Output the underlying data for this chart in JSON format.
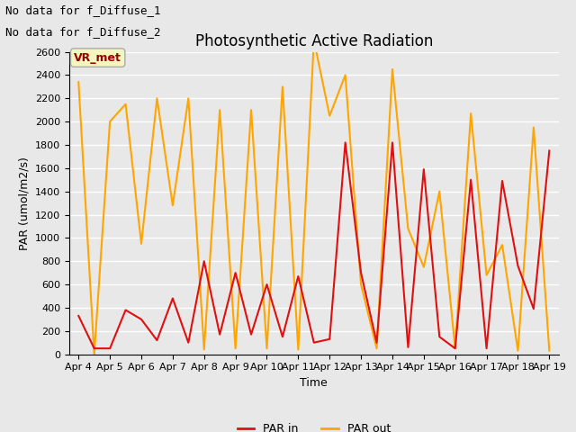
{
  "title": "Photosynthetic Active Radiation",
  "xlabel": "Time",
  "ylabel": "PAR (umol/m2/s)",
  "annotation_lines": [
    "No data for f_Diffuse_1",
    "No data for f_Diffuse_2"
  ],
  "legend_box_label": "VR_met",
  "x_labels": [
    "Apr 4",
    "Apr 5",
    "Apr 6",
    "Apr 7",
    "Apr 8",
    "Apr 9",
    "Apr 10",
    "Apr 11",
    "Apr 12",
    "Apr 13",
    "Apr 14",
    "Apr 15",
    "Apr 16",
    "Apr 17",
    "Apr 18",
    "Apr 19"
  ],
  "x_ticks": [
    0,
    1,
    2,
    3,
    4,
    5,
    6,
    7,
    8,
    9,
    10,
    11,
    12,
    13,
    14,
    15
  ],
  "ylim": [
    0,
    2600
  ],
  "yticks": [
    0,
    200,
    400,
    600,
    800,
    1000,
    1200,
    1400,
    1600,
    1800,
    2000,
    2200,
    2400,
    2600
  ],
  "par_in": {
    "x": [
      0,
      0.5,
      1,
      1.5,
      2,
      2.5,
      3,
      3.5,
      4,
      4.5,
      5,
      5.5,
      6,
      6.5,
      7,
      7.5,
      8,
      8.5,
      9,
      9.5,
      10,
      10.5,
      11,
      11.5,
      12,
      12.5,
      13,
      13.5,
      14,
      14.5,
      15
    ],
    "y": [
      330,
      50,
      50,
      380,
      300,
      120,
      480,
      100,
      800,
      170,
      700,
      170,
      600,
      150,
      670,
      100,
      130,
      1820,
      700,
      100,
      1820,
      60,
      1590,
      150,
      50,
      1500,
      50,
      1490,
      760,
      390,
      1750
    ],
    "color": "#e01010",
    "linewidth": 1.5,
    "label": "PAR in"
  },
  "par_out": {
    "x": [
      0,
      0.5,
      1,
      1.5,
      2,
      2.5,
      3,
      3.5,
      4,
      4.5,
      5,
      5.5,
      6,
      6.5,
      7,
      7.5,
      8,
      8.5,
      9,
      9.5,
      10,
      10.5,
      11,
      11.5,
      12,
      12.5,
      13,
      13.5,
      14,
      14.5,
      15
    ],
    "y": [
      2340,
      0,
      2000,
      2150,
      950,
      2200,
      1280,
      2200,
      40,
      2100,
      50,
      2100,
      50,
      2300,
      40,
      2700,
      2050,
      2400,
      600,
      50,
      2450,
      1080,
      750,
      1400,
      50,
      2070,
      680,
      940,
      30,
      1950,
      30
    ],
    "color": "#FFA500",
    "linewidth": 1.5,
    "label": "PAR out"
  },
  "background_color": "#e8e8e8",
  "plot_bg_color": "#e8e8e8",
  "grid_color": "#ffffff",
  "legend_box_facecolor": "#f5f5c0",
  "legend_box_edgecolor": "#aaaaaa",
  "legend_box_text_color": "#990000",
  "title_fontsize": 12,
  "axis_label_fontsize": 9,
  "tick_fontsize": 8,
  "annotation_fontsize": 9,
  "legend_fontsize": 9
}
